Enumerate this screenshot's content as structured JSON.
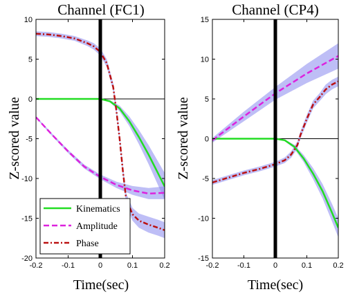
{
  "colors": {
    "kinematics": "#22dd22",
    "amplitude": "#dd22dd",
    "phase": "#bb1111",
    "band": "#8888ee",
    "event_line": "#000000"
  },
  "chart_data": [
    {
      "type": "line",
      "title": "Channel (FC1)",
      "xlabel": "Time(sec)",
      "ylabel": "Z-scored value",
      "xlim": [
        -0.2,
        0.2
      ],
      "ylim": [
        -20,
        10
      ],
      "xticks": [
        "-0.2",
        "-0.1",
        "0",
        "0.1",
        "0.2"
      ],
      "yticks": [
        "10",
        "5",
        "0",
        "-5",
        "-10",
        "-15",
        "-20"
      ],
      "zero_line": true,
      "event_line_x": 0,
      "legend": {
        "position": "bottom-left",
        "entries": [
          "Kinematics",
          "Amplitude",
          "Phase"
        ]
      },
      "series": [
        {
          "name": "Kinematics",
          "style": "solid",
          "x": [
            -0.2,
            -0.1,
            -0.05,
            0,
            0.03,
            0.06,
            0.09,
            0.12,
            0.15,
            0.18,
            0.2
          ],
          "y": [
            0,
            0,
            0,
            0,
            -0.3,
            -1.2,
            -2.8,
            -4.8,
            -7.0,
            -9.4,
            -11.0
          ],
          "band": [
            0,
            0,
            0,
            0,
            0.15,
            0.35,
            0.6,
            0.9,
            1.2,
            1.5,
            1.7
          ]
        },
        {
          "name": "Amplitude",
          "style": "dashed",
          "x": [
            -0.2,
            -0.15,
            -0.1,
            -0.05,
            0,
            0.05,
            0.1,
            0.15,
            0.2
          ],
          "y": [
            -2.3,
            -4.5,
            -6.6,
            -8.5,
            -9.8,
            -10.8,
            -11.5,
            -11.9,
            -11.8
          ],
          "band": [
            0.1,
            0.15,
            0.2,
            0.25,
            0.3,
            0.4,
            0.55,
            0.7,
            0.8
          ]
        },
        {
          "name": "Phase",
          "style": "dashdot",
          "x": [
            -0.2,
            -0.16,
            -0.12,
            -0.08,
            -0.04,
            -0.02,
            0,
            0.02,
            0.04,
            0.05,
            0.06,
            0.07,
            0.08,
            0.1,
            0.12,
            0.15,
            0.18,
            0.2
          ],
          "y": [
            8.2,
            8.1,
            7.9,
            7.6,
            7.0,
            6.6,
            5.9,
            4.5,
            1.5,
            -1.5,
            -5.0,
            -9.0,
            -12.5,
            -14.5,
            -15.3,
            -15.8,
            -16.2,
            -16.5
          ],
          "band": [
            0.3,
            0.3,
            0.3,
            0.3,
            0.35,
            0.4,
            0.45,
            0.5,
            0.5,
            0.5,
            0.5,
            0.6,
            0.7,
            0.8,
            0.9,
            1.0,
            1.0,
            1.0
          ]
        }
      ]
    },
    {
      "type": "line",
      "title": "Channel (CP4)",
      "xlabel": "Time(sec)",
      "ylabel": "Z-scored value",
      "xlim": [
        -0.2,
        0.2
      ],
      "ylim": [
        -15,
        15
      ],
      "xticks": [
        "-0.2",
        "-0.1",
        "0",
        "0.1",
        "0.2"
      ],
      "yticks": [
        "15",
        "10",
        "5",
        "0",
        "-5",
        "-10",
        "-15"
      ],
      "zero_line": true,
      "event_line_x": 0,
      "series": [
        {
          "name": "Kinematics",
          "style": "solid",
          "x": [
            -0.2,
            -0.1,
            -0.05,
            0,
            0.03,
            0.06,
            0.09,
            0.12,
            0.15,
            0.18,
            0.2
          ],
          "y": [
            0,
            0,
            0,
            0,
            -0.2,
            -1.0,
            -2.5,
            -4.4,
            -6.6,
            -9.3,
            -11.2
          ],
          "band": [
            0,
            0,
            0,
            0,
            0.1,
            0.25,
            0.45,
            0.7,
            0.9,
            1.1,
            1.2
          ]
        },
        {
          "name": "Amplitude",
          "style": "dashed",
          "x": [
            -0.2,
            -0.1,
            0,
            0.1,
            0.2
          ],
          "y": [
            -0.2,
            2.8,
            5.7,
            8.2,
            10.4
          ],
          "band": [
            0.3,
            0.6,
            0.8,
            1.2,
            1.6
          ]
        },
        {
          "name": "Phase",
          "style": "dashdot",
          "x": [
            -0.2,
            -0.15,
            -0.1,
            -0.05,
            0,
            0.03,
            0.05,
            0.07,
            0.08,
            0.1,
            0.12,
            0.14,
            0.16,
            0.18,
            0.2
          ],
          "y": [
            -5.5,
            -4.9,
            -4.3,
            -3.8,
            -3.2,
            -2.7,
            -2.0,
            -0.8,
            0.5,
            2.5,
            4.3,
            5.2,
            6.2,
            6.8,
            7.2
          ],
          "band": [
            0.3,
            0.3,
            0.3,
            0.3,
            0.3,
            0.35,
            0.4,
            0.45,
            0.45,
            0.5,
            0.5,
            0.5,
            0.6,
            0.6,
            0.6
          ]
        }
      ]
    }
  ]
}
